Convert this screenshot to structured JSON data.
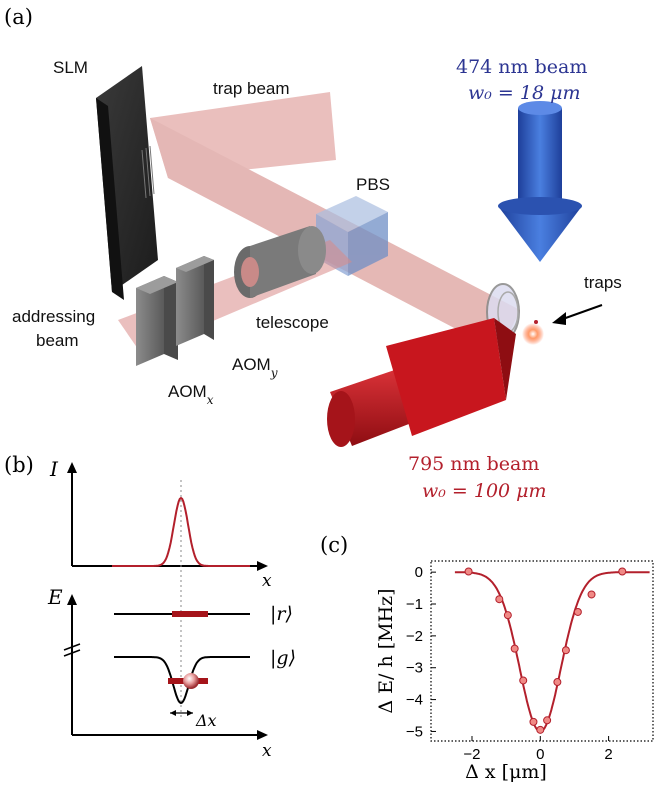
{
  "panel_a": {
    "label": "(a)",
    "slm": "SLM",
    "trap_beam": "trap beam",
    "pbs": "PBS",
    "blue_beam_line1": "474 nm  beam",
    "blue_beam_line2": "w₀ = 18 μm",
    "traps": "traps",
    "addressing_line1": "addressing",
    "addressing_line2": "beam",
    "telescope": "telescope",
    "aom_y": "AOM",
    "aom_y_sub": "y",
    "aom_x": "AOM",
    "aom_x_sub": "x",
    "red_beam_line1": "795 nm beam",
    "red_beam_line2": "w₀ = 100 μm",
    "colors": {
      "blue_beam": "#2f5bbf",
      "red_beam": "#c8161e",
      "trap_beam": "#d98b88"
    }
  },
  "panel_b": {
    "label": "(b)",
    "intensity_axis": "I",
    "x_axis_top": "x",
    "energy_axis": "E",
    "rydberg_state": "|r⟩",
    "ground_state": "|g⟩",
    "shift_label": "Δx",
    "x_axis_bottom": "x"
  },
  "panel_c": {
    "label": "(c)",
    "chart_data": {
      "type": "scatter",
      "xlabel": "Δ x [μm]",
      "ylabel": "Δ E/ h [MHz]",
      "xlim": [
        -3.2,
        3.3
      ],
      "ylim": [
        -5.3,
        0.35
      ],
      "xticks": [
        "−2",
        "0",
        "2"
      ],
      "yticks": [
        "0",
        "−1",
        "−2",
        "−3",
        "−4",
        "−5"
      ],
      "series": [
        {
          "kind": "points",
          "x": [
            -2.1,
            -1.2,
            -0.95,
            -0.75,
            -0.5,
            -0.2,
            0.0,
            0.2,
            0.5,
            0.75,
            1.1,
            1.5,
            2.4
          ],
          "y": [
            0.02,
            -0.85,
            -1.35,
            -2.4,
            -3.4,
            -4.7,
            -4.95,
            -4.65,
            -3.45,
            -2.45,
            -1.25,
            -0.7,
            0.02
          ]
        },
        {
          "kind": "fit",
          "amplitude": -5.0,
          "center": 0.0,
          "sigma": 0.6,
          "offset": 0.0
        }
      ],
      "colors": {
        "line": "#b3202c",
        "marker_fill": "#f08a86",
        "marker_edge": "#b3202c"
      },
      "grid": false
    }
  }
}
